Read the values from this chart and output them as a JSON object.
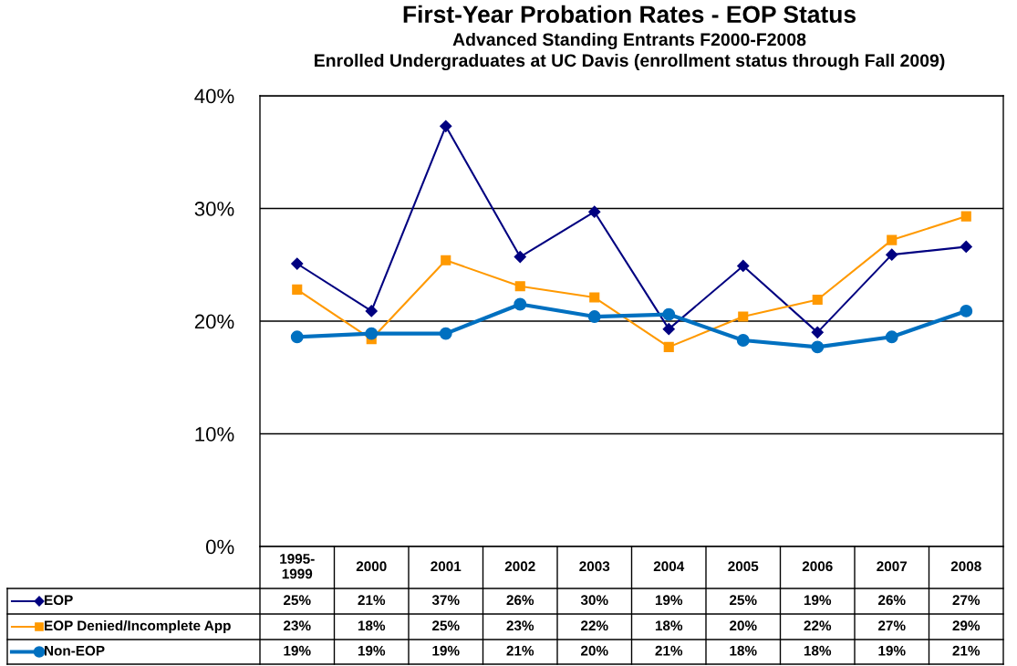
{
  "chart_data": {
    "type": "line",
    "title": "First-Year Probation Rates - EOP Status",
    "subtitle": "Advanced Standing Entrants F2000-F2008\nEnrolled Undergraduates at UC Davis (enrollment status through Fall 2009)",
    "categories": [
      "1995-\n1999",
      "2000",
      "2001",
      "2002",
      "2003",
      "2004",
      "2005",
      "2006",
      "2007",
      "2008"
    ],
    "series": [
      {
        "name": "EOP",
        "color": "#000080",
        "marker": "diamond",
        "values": [
          25.1,
          20.9,
          37.3,
          25.7,
          29.7,
          19.3,
          24.9,
          19.0,
          25.9,
          26.6
        ],
        "value_labels": [
          "25%",
          "21%",
          "37%",
          "26%",
          "30%",
          "19%",
          "25%",
          "19%",
          "26%",
          "27%"
        ]
      },
      {
        "name": "EOP Denied/Incomplete App",
        "color": "#ff9900",
        "marker": "square",
        "values": [
          22.8,
          18.4,
          25.4,
          23.1,
          22.1,
          17.7,
          20.4,
          21.9,
          27.2,
          29.3
        ],
        "value_labels": [
          "23%",
          "18%",
          "25%",
          "23%",
          "22%",
          "18%",
          "20%",
          "22%",
          "27%",
          "29%"
        ]
      },
      {
        "name": "Non-EOP",
        "color": "#0070c0",
        "marker": "circle",
        "values": [
          18.6,
          18.9,
          18.9,
          21.5,
          20.4,
          20.6,
          18.3,
          17.7,
          18.6,
          20.9
        ],
        "value_labels": [
          "19%",
          "19%",
          "19%",
          "21%",
          "20%",
          "21%",
          "18%",
          "18%",
          "19%",
          "21%"
        ]
      }
    ],
    "ylim": [
      0,
      40
    ],
    "yticks": [
      {
        "value": 0,
        "label": "0%"
      },
      {
        "value": 10,
        "label": "10%"
      },
      {
        "value": 20,
        "label": "20%"
      },
      {
        "value": 30,
        "label": "30%"
      },
      {
        "value": 40,
        "label": "40%"
      }
    ],
    "grid": "y",
    "legend": "bottom left"
  }
}
